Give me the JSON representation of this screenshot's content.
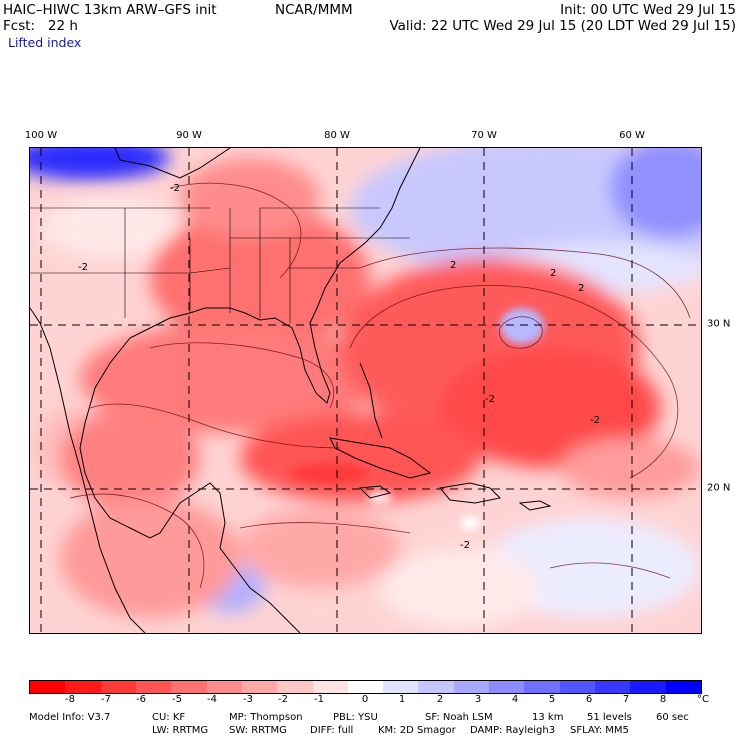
{
  "header": {
    "model_line": "HAIC–HIWC 13km ARW–GFS init",
    "org": "NCAR/MMM",
    "init": "Init: 00 UTC Wed 29 Jul 15",
    "fcst": "Fcst:   22 h",
    "valid": "Valid: 22 UTC Wed 29 Jul 15 (20 LDT Wed 29 Jul 15)",
    "field": "Lifted index"
  },
  "map": {
    "lon_labels": [
      "100 W",
      "90 W",
      "80 W",
      "70 W",
      "60 W"
    ],
    "lat_labels": [
      "30 N",
      "20 N"
    ],
    "contour_labels": [
      "-2",
      "-2",
      "-2",
      "-2",
      "2",
      "2",
      "2",
      "-2"
    ]
  },
  "colorbar": {
    "ticks": [
      "-8",
      "-7",
      "-6",
      "-5",
      "-4",
      "-3",
      "-2",
      "-1",
      "0",
      "1",
      "2",
      "3",
      "4",
      "5",
      "6",
      "7",
      "8"
    ],
    "unit": "°C",
    "colors": [
      "#ff0000",
      "#ff1a1a",
      "#ff3838",
      "#ff5555",
      "#ff7070",
      "#ff8c8c",
      "#ffa8a8",
      "#ffc6c6",
      "#ffe2e2",
      "#ffffff",
      "#e2e2ff",
      "#c6c6ff",
      "#a8a8ff",
      "#8c8cff",
      "#7070ff",
      "#5555ff",
      "#3838ff",
      "#1a1aff",
      "#0000ff"
    ]
  },
  "model_info": {
    "line1": [
      "Model Info: V3.7",
      "CU: KF",
      "MP: Thompson",
      "PBL: YSU",
      "SF: Noah LSM",
      "13 km",
      "51 levels",
      "60 sec"
    ],
    "line2": [
      "LW: RRTMG",
      "SW: RRTMG",
      "DIFF: full",
      "KM: 2D Smagor",
      "DAMP: Rayleigh3",
      "SFLAY: MM5"
    ]
  }
}
